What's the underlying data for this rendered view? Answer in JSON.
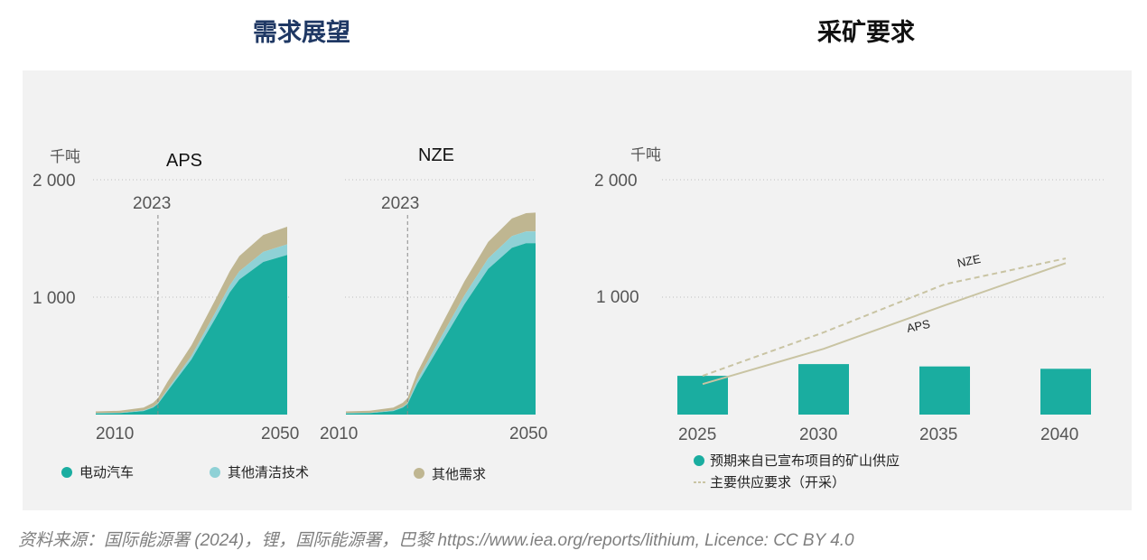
{
  "headings": {
    "left": "需求展望",
    "right": "采矿要求"
  },
  "source": "资料来源：国际能源署 (2024)，锂，国际能源署，巴黎 https://www.iea.org/reports/lithium, Licence: CC BY 4.0",
  "colors": {
    "ev": "#1aada0",
    "clean": "#8fd1d6",
    "other": "#bfb691",
    "supply_line": "#c9c4a3"
  },
  "chart_data": [
    {
      "type": "area",
      "title": "APS",
      "unit": "千吨",
      "x_ticks": [
        "2010",
        "2050"
      ],
      "y_ticks": [
        "2 000",
        "1 000"
      ],
      "ylim": [
        0,
        2000
      ],
      "marker_label": "2023",
      "marker_year": 2023,
      "x": [
        2010,
        2015,
        2020,
        2022,
        2023,
        2025,
        2030,
        2035,
        2038,
        2040,
        2045,
        2050
      ],
      "series": [
        {
          "name": "电动汽车",
          "values": [
            10,
            12,
            30,
            60,
            90,
            200,
            470,
            820,
            1040,
            1150,
            1300,
            1360
          ]
        },
        {
          "name": "其他清洁技术",
          "values": [
            2,
            3,
            5,
            6,
            8,
            15,
            30,
            50,
            60,
            70,
            85,
            90
          ]
        },
        {
          "name": "其他需求",
          "values": [
            15,
            17,
            25,
            35,
            42,
            65,
            90,
            110,
            120,
            130,
            145,
            150
          ]
        }
      ]
    },
    {
      "type": "area",
      "title": "NZE",
      "unit": "",
      "x_ticks": [
        "2010",
        "2050"
      ],
      "y_ticks": [],
      "ylim": [
        0,
        2000
      ],
      "marker_label": "2023",
      "marker_year": 2023,
      "x": [
        2010,
        2015,
        2020,
        2022,
        2023,
        2025,
        2030,
        2035,
        2040,
        2045,
        2048,
        2050
      ],
      "series": [
        {
          "name": "电动汽车",
          "values": [
            10,
            12,
            30,
            60,
            90,
            260,
            600,
            940,
            1240,
            1420,
            1460,
            1460
          ]
        },
        {
          "name": "其他清洁技术",
          "values": [
            2,
            3,
            5,
            6,
            8,
            30,
            55,
            75,
            90,
            100,
            100,
            100
          ]
        },
        {
          "name": "其他需求",
          "values": [
            15,
            17,
            25,
            35,
            42,
            65,
            95,
            120,
            140,
            150,
            155,
            160
          ]
        }
      ]
    },
    {
      "type": "bar+line",
      "unit": "千吨",
      "categories": [
        "2025",
        "2030",
        "2035",
        "2040"
      ],
      "y_ticks": [
        "2 000",
        "1 000"
      ],
      "ylim": [
        0,
        2000
      ],
      "bars": {
        "name": "预期来自已宣布项目的矿山供应",
        "values": [
          330,
          430,
          410,
          390
        ]
      },
      "lines": [
        {
          "name": "NZE",
          "style": "dashed",
          "x": [
            2025,
            2030,
            2035,
            2040
          ],
          "values": [
            330,
            700,
            1110,
            1330
          ]
        },
        {
          "name": "APS",
          "style": "solid",
          "x": [
            2025,
            2030,
            2035,
            2040
          ],
          "values": [
            260,
            560,
            930,
            1290
          ]
        }
      ],
      "line_legend": "主要供应要求（开采）"
    }
  ]
}
